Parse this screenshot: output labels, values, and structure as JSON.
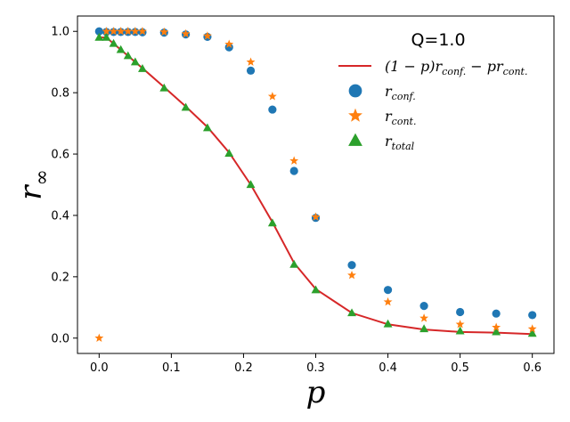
{
  "chart_data": {
    "type": "scatter",
    "title": "",
    "legend_title": "Q=1.0",
    "legend_position": "top-right",
    "xlabel": "p",
    "ylabel_main": "r",
    "ylabel_sub": "∞",
    "xlim": [
      -0.03,
      0.63
    ],
    "ylim": [
      -0.05,
      1.05
    ],
    "xticks": [
      0.0,
      0.1,
      0.2,
      0.3,
      0.4,
      0.5,
      0.6
    ],
    "xtick_labels": [
      "0.0",
      "0.1",
      "0.2",
      "0.3",
      "0.4",
      "0.5",
      "0.6"
    ],
    "yticks": [
      0.0,
      0.2,
      0.4,
      0.6,
      0.8,
      1.0
    ],
    "ytick_labels": [
      "0.0",
      "0.2",
      "0.4",
      "0.6",
      "0.8",
      "1.0"
    ],
    "grid": false,
    "colors": {
      "line": "#d62728",
      "conf": "#1f77b4",
      "cont": "#ff7f0e",
      "total": "#2ca02c"
    },
    "legend": [
      {
        "key": "line",
        "marker": "line",
        "parts": [
          {
            "t": "(1 − ",
            "s": "base"
          },
          {
            "t": "p",
            "s": "base"
          },
          {
            "t": ")",
            "s": "base"
          },
          {
            "t": "r",
            "s": "base"
          },
          {
            "t": "conf.",
            "s": "sub"
          },
          {
            "t": " − ",
            "s": "base"
          },
          {
            "t": "pr",
            "s": "base"
          },
          {
            "t": "cont.",
            "s": "sub"
          }
        ]
      },
      {
        "key": "conf",
        "marker": "circle",
        "parts": [
          {
            "t": "r",
            "s": "base"
          },
          {
            "t": "conf.",
            "s": "sub"
          }
        ]
      },
      {
        "key": "cont",
        "marker": "star",
        "parts": [
          {
            "t": "r",
            "s": "base"
          },
          {
            "t": "cont.",
            "s": "sub"
          }
        ]
      },
      {
        "key": "total",
        "marker": "triangle",
        "parts": [
          {
            "t": "r",
            "s": "base"
          },
          {
            "t": "total",
            "s": "sub"
          }
        ]
      }
    ],
    "x": [
      0.0,
      0.01,
      0.02,
      0.03,
      0.04,
      0.05,
      0.06,
      0.09,
      0.12,
      0.15,
      0.18,
      0.21,
      0.24,
      0.27,
      0.3,
      0.35,
      0.4,
      0.45,
      0.5,
      0.55,
      0.6
    ],
    "series": [
      {
        "key": "conf",
        "marker": "circle",
        "values": [
          1.0,
          0.998,
          0.998,
          0.998,
          0.998,
          0.998,
          0.997,
          0.996,
          0.99,
          0.982,
          0.948,
          0.872,
          0.745,
          0.545,
          0.392,
          0.238,
          0.157,
          0.105,
          0.085,
          0.08,
          0.075
        ]
      },
      {
        "key": "cont",
        "marker": "star",
        "values": [
          0.0,
          1.0,
          1.0,
          1.0,
          1.0,
          1.0,
          1.0,
          0.998,
          0.992,
          0.985,
          0.958,
          0.9,
          0.788,
          0.578,
          0.395,
          0.205,
          0.118,
          0.065,
          0.045,
          0.035,
          0.03
        ]
      },
      {
        "key": "total",
        "marker": "triangle",
        "values": [
          0.98,
          0.98,
          0.96,
          0.94,
          0.92,
          0.9,
          0.878,
          0.815,
          0.752,
          0.685,
          0.602,
          0.5,
          0.375,
          0.24,
          0.157,
          0.082,
          0.046,
          0.03,
          0.023,
          0.02,
          0.015
        ]
      },
      {
        "key": "line",
        "marker": "line",
        "values": [
          0.98,
          0.98,
          0.96,
          0.94,
          0.92,
          0.9,
          0.88,
          0.818,
          0.755,
          0.688,
          0.605,
          0.5,
          0.378,
          0.245,
          0.16,
          0.082,
          0.045,
          0.028,
          0.02,
          0.018,
          0.013
        ]
      }
    ]
  }
}
